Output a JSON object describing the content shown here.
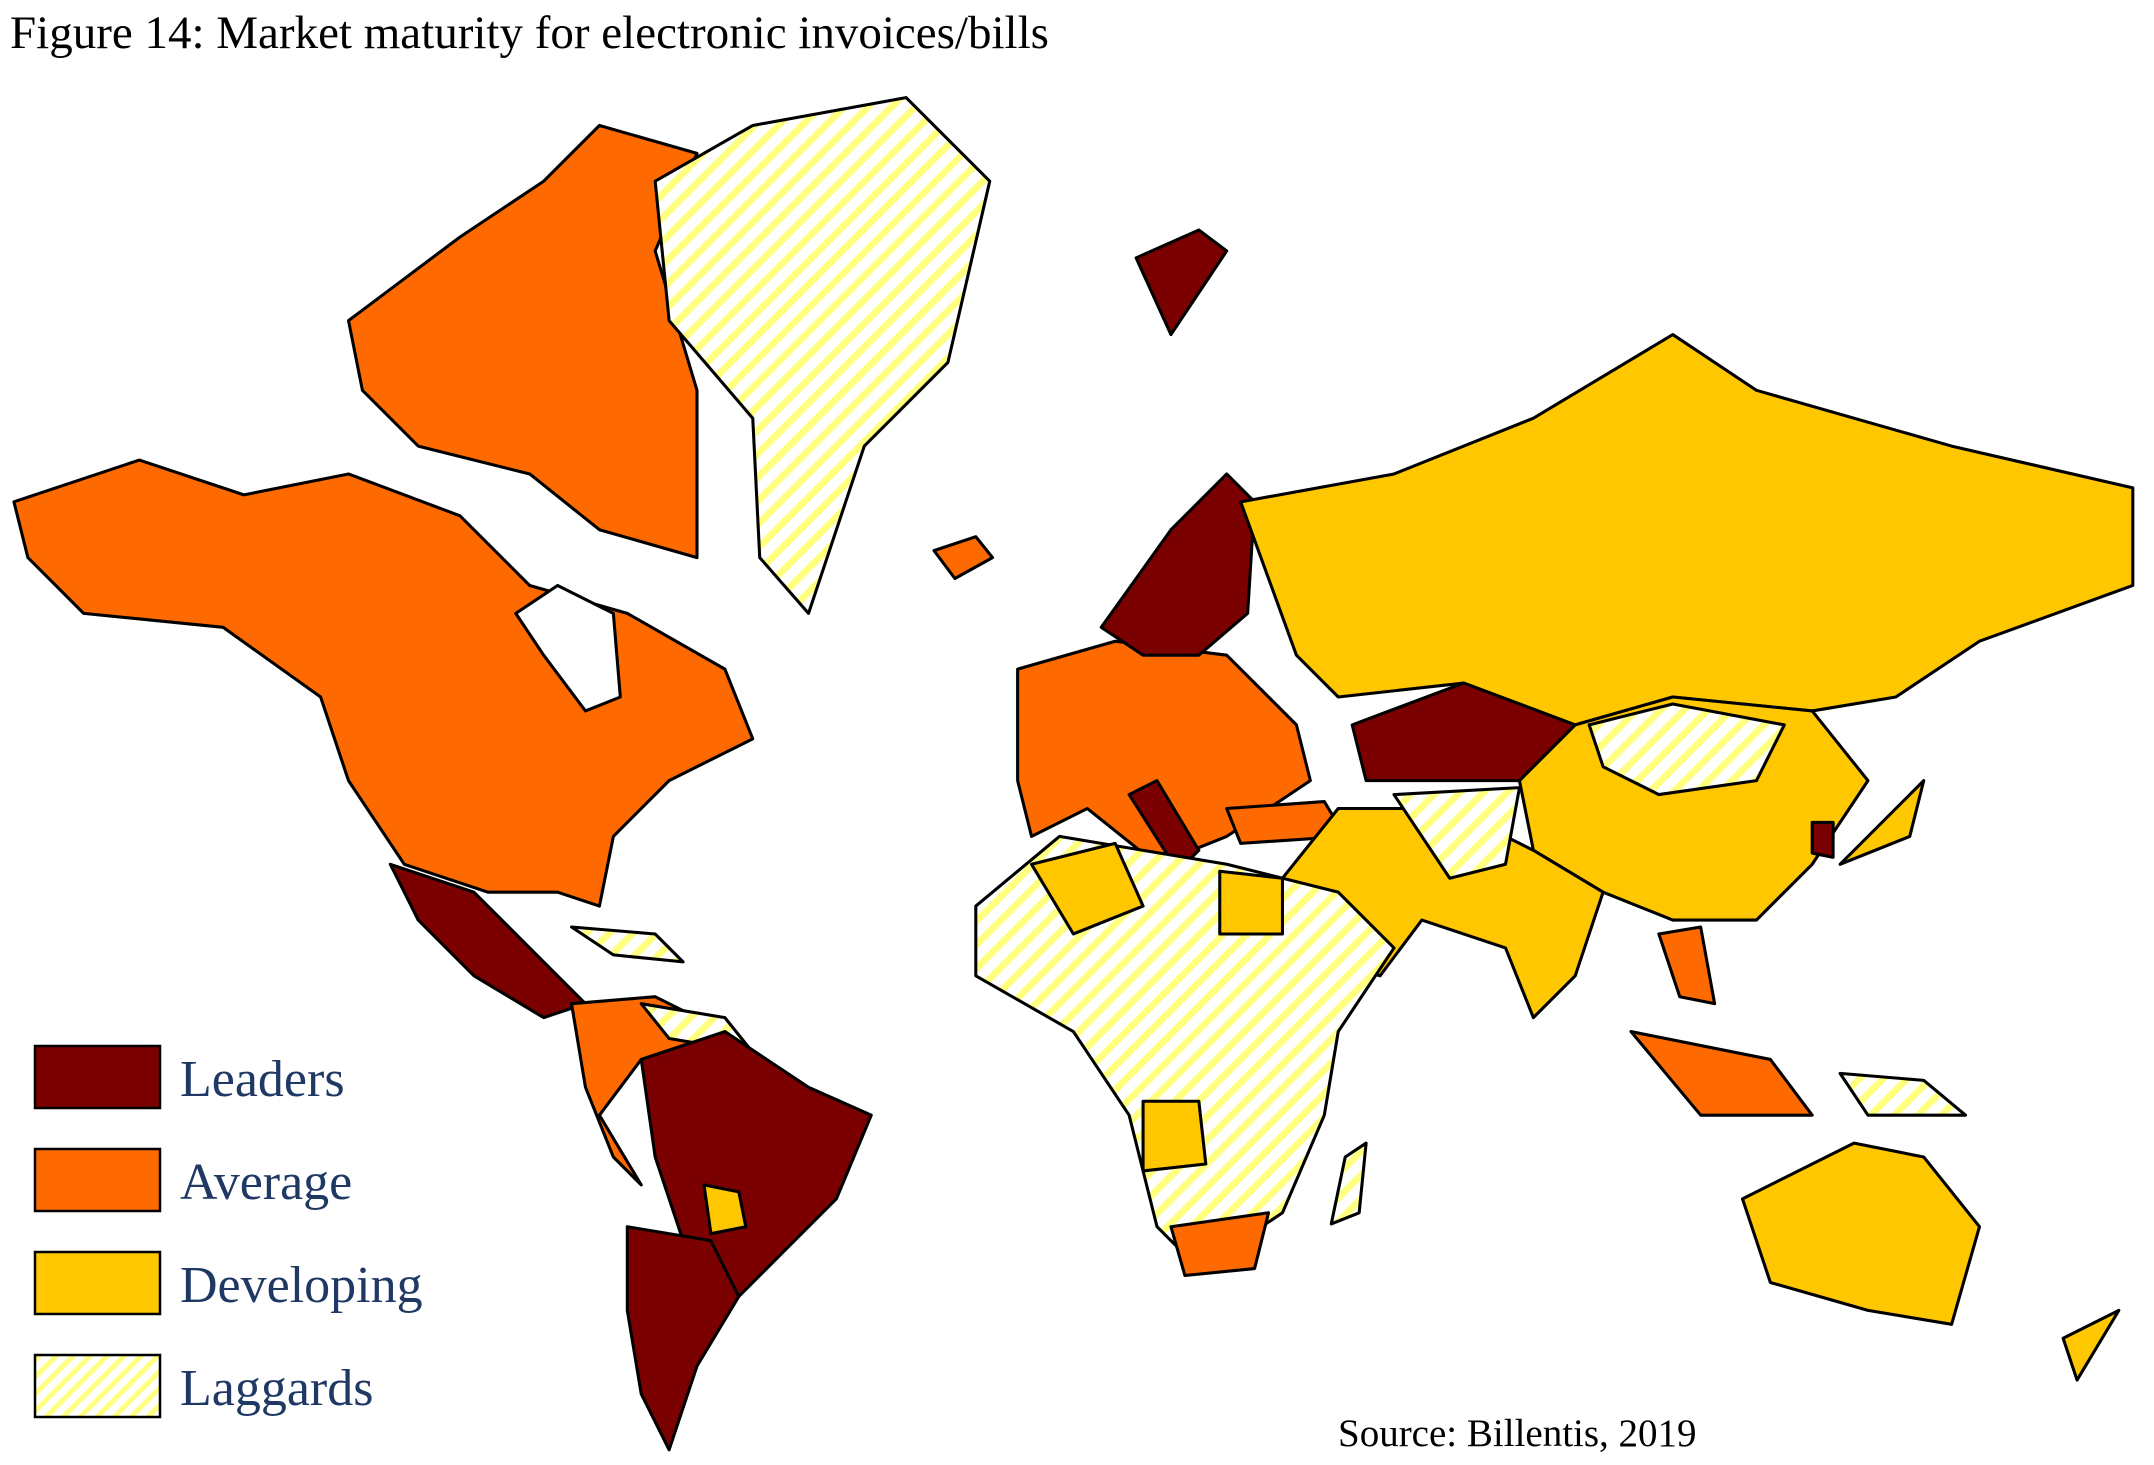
{
  "header": {
    "title": "Figure 14: Market maturity for electronic invoices/bills"
  },
  "legend": {
    "items": [
      {
        "label": "Leaders",
        "color": "#7b0000",
        "fill_style": "solid"
      },
      {
        "label": "Average",
        "color": "#ff6a00",
        "fill_style": "solid"
      },
      {
        "label": "Developing",
        "color": "#ffc700",
        "fill_style": "solid"
      },
      {
        "label": "Laggards",
        "color": "#ffff80",
        "fill_style": "hatched"
      }
    ]
  },
  "source": "Source: Billentis,  2019"
}
